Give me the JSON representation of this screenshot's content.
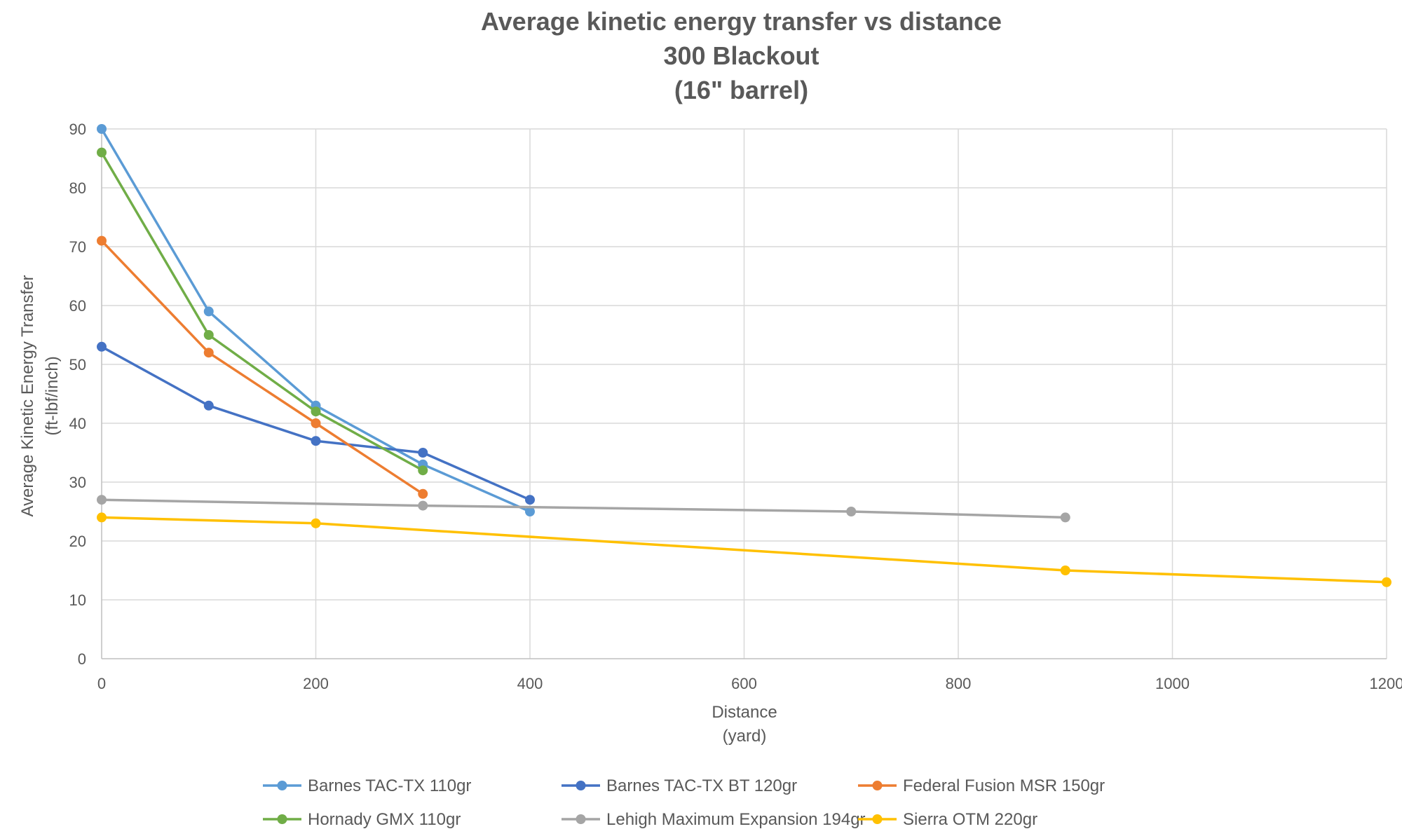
{
  "chart_data": {
    "type": "line",
    "title": "Average kinetic energy transfer vs distance",
    "subtitle_lines": [
      "300 Blackout",
      "(16\" barrel)"
    ],
    "xlabel": "Distance",
    "xlabel_unit": "(yard)",
    "ylabel": "Average Kinetic Energy Transfer",
    "ylabel_unit": "(ft-lbf/inch)",
    "xlim": [
      0,
      1200
    ],
    "ylim": [
      0,
      90
    ],
    "x_ticks": [
      0,
      200,
      400,
      600,
      800,
      1000,
      1200
    ],
    "y_ticks": [
      0,
      10,
      20,
      30,
      40,
      50,
      60,
      70,
      80,
      90
    ],
    "grid": true,
    "legend_position": "bottom",
    "series": [
      {
        "name": "Barnes TAC-TX 110gr",
        "color": "#5B9BD5",
        "points": [
          [
            0,
            90
          ],
          [
            100,
            59
          ],
          [
            200,
            43
          ],
          [
            300,
            33
          ],
          [
            400,
            25
          ]
        ]
      },
      {
        "name": "Barnes TAC-TX BT 120gr",
        "color": "#4472C4",
        "points": [
          [
            0,
            53
          ],
          [
            100,
            43
          ],
          [
            200,
            37
          ],
          [
            300,
            35
          ],
          [
            400,
            27
          ]
        ]
      },
      {
        "name": "Federal Fusion MSR 150gr",
        "color": "#ED7D31",
        "points": [
          [
            0,
            71
          ],
          [
            100,
            52
          ],
          [
            200,
            40
          ],
          [
            300,
            28
          ]
        ]
      },
      {
        "name": "Hornady GMX 110gr",
        "color": "#70AD47",
        "points": [
          [
            0,
            86
          ],
          [
            100,
            55
          ],
          [
            200,
            42
          ],
          [
            300,
            32
          ]
        ]
      },
      {
        "name": "Lehigh Maximum Expansion 194gr",
        "color": "#A5A5A5",
        "points": [
          [
            0,
            27
          ],
          [
            300,
            26
          ],
          [
            700,
            25
          ],
          [
            900,
            24
          ]
        ]
      },
      {
        "name": "Sierra OTM 220gr",
        "color": "#FFC000",
        "points": [
          [
            0,
            24
          ],
          [
            200,
            23
          ],
          [
            900,
            15
          ],
          [
            1200,
            13
          ]
        ]
      }
    ]
  }
}
